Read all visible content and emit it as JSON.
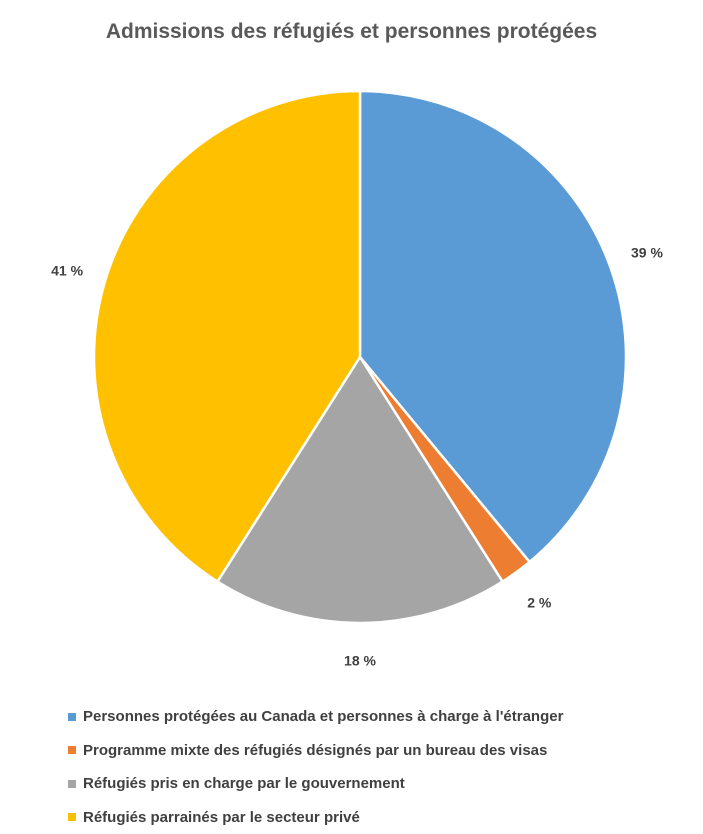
{
  "chart_data": {
    "type": "pie",
    "title": "Admissions des réfugiés et personnes protégées",
    "legend_position": "bottom",
    "slices": [
      {
        "name": "Personnes protégées au Canada et personnes à charge à l'étranger",
        "value": 39,
        "label": "39 %",
        "color": "#5B9BD5"
      },
      {
        "name": "Programme mixte des réfugiés désignés par un bureau des visas",
        "value": 2,
        "label": "2 %",
        "color": "#ED7D31"
      },
      {
        "name": "Réfugiés pris en charge par le gouvernement",
        "value": 18,
        "label": "18 %",
        "color": "#A5A5A5"
      },
      {
        "name": "Réfugiés parrainés par le secteur privé",
        "value": 41,
        "label": "41 %",
        "color": "#FFC000"
      }
    ]
  }
}
